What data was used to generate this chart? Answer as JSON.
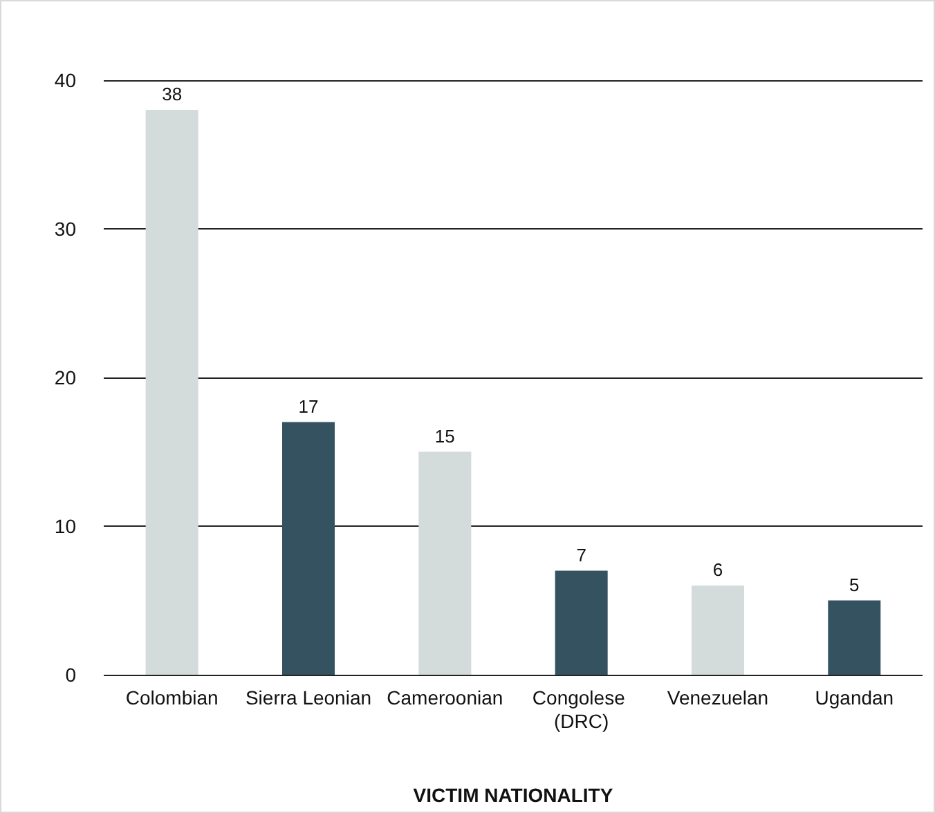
{
  "chart_data": {
    "type": "bar",
    "xlabel": "VICTIM NATIONALITY",
    "categories": [
      "Colombian",
      "Sierra Leonian",
      "Cameroonian",
      "Congolese (DRC)",
      "Venezuelan",
      "Ugandan"
    ],
    "values": [
      38,
      17,
      15,
      7,
      6,
      5
    ],
    "colors": [
      "#d3dcdb",
      "#34525f",
      "#d3dcdb",
      "#34525f",
      "#d3dcdb",
      "#34525f"
    ],
    "ylim": [
      0,
      40
    ],
    "yticks": [
      0,
      10,
      20,
      30,
      40
    ],
    "grid": "y",
    "data_labels": true
  }
}
